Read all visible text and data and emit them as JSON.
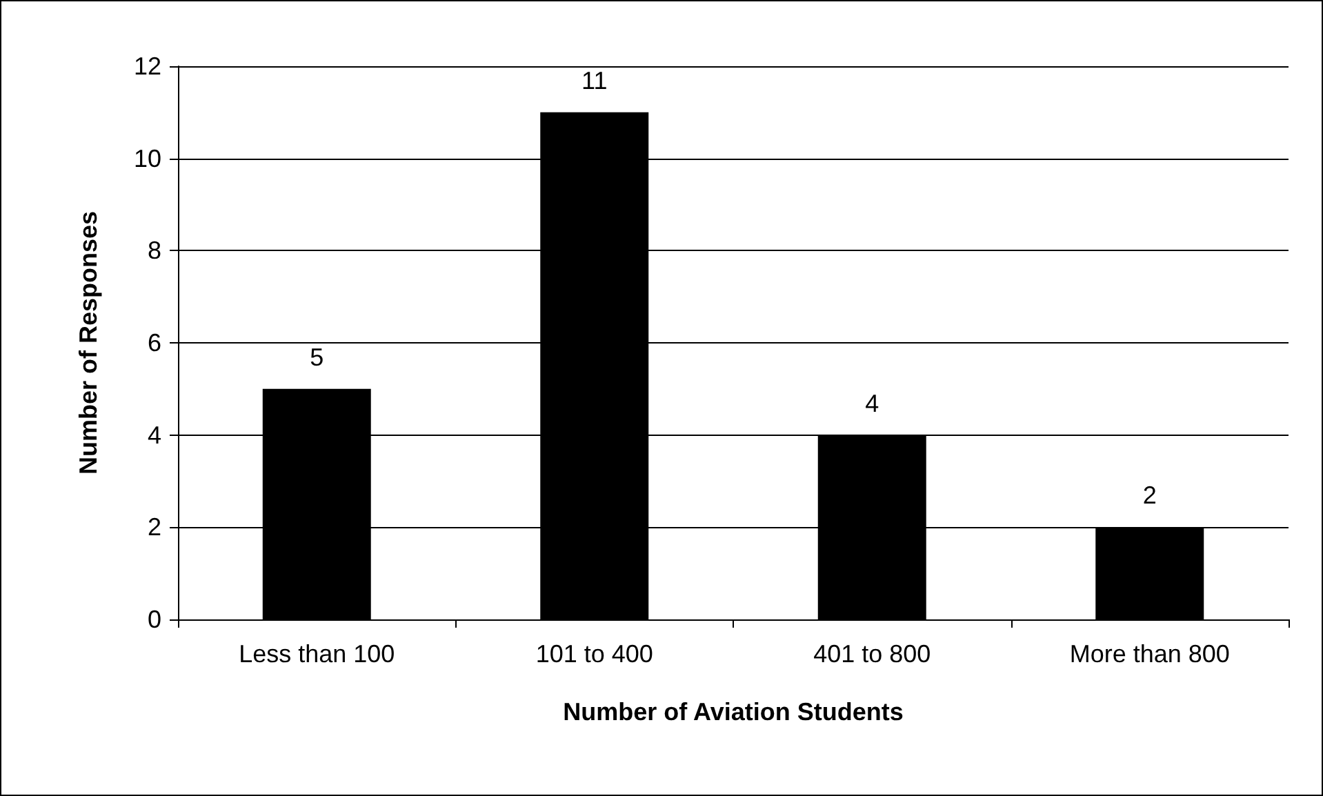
{
  "chart_data": {
    "type": "bar",
    "xlabel": "Number of Aviation Students",
    "ylabel": "Number of Responses",
    "categories": [
      "Less than 100",
      "101 to 400",
      "401 to 800",
      "More than 800"
    ],
    "values": [
      5,
      11,
      4,
      2
    ],
    "color": "#000000",
    "ylim": [
      0,
      12
    ],
    "yticks": [
      0,
      2,
      4,
      6,
      8,
      10,
      12
    ],
    "grid": "y",
    "data_labels": true
  }
}
